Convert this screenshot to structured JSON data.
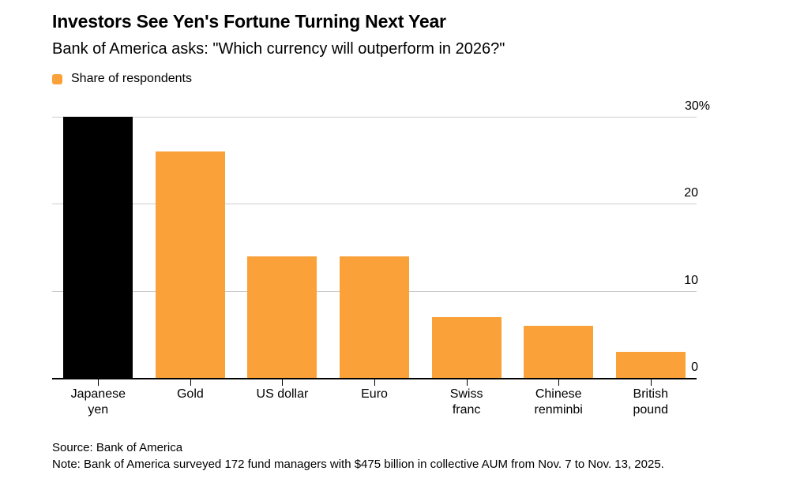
{
  "header": {
    "title": "Investors See Yen's Fortune Turning Next Year",
    "subtitle": "Bank of America asks: \"Which currency will outperform in 2026?\""
  },
  "legend": {
    "label": "Share of respondents"
  },
  "chart_data": {
    "type": "bar",
    "title": "Investors See Yen's Fortune Turning Next Year",
    "subtitle": "Bank of America asks: \"Which currency will outperform in 2026?\"",
    "series_name": "Share of respondents",
    "categories": [
      "Japanese yen",
      "Gold",
      "US dollar",
      "Euro",
      "Swiss franc",
      "Chinese renminbi",
      "British pound"
    ],
    "category_lines": [
      [
        "Japanese",
        "yen"
      ],
      [
        "Gold"
      ],
      [
        "US dollar"
      ],
      [
        "Euro"
      ],
      [
        "Swiss",
        "franc"
      ],
      [
        "Chinese",
        "renminbi"
      ],
      [
        "British",
        "pound"
      ]
    ],
    "values": [
      30,
      26,
      14,
      14,
      7,
      6,
      3
    ],
    "bar_colors": [
      "#000000",
      "#FAA239",
      "#FAA239",
      "#FAA239",
      "#FAA239",
      "#FAA239",
      "#FAA239"
    ],
    "xlabel": "",
    "ylabel": "",
    "ylim": [
      0,
      30
    ],
    "yticks": [
      0,
      10,
      20,
      30
    ],
    "ytick_labels": [
      "0",
      "10",
      "20",
      "30%"
    ],
    "grid": true,
    "legend_position": "top-left",
    "highlight_category": "Japanese yen"
  },
  "footer": {
    "source": "Source: Bank of America",
    "note": "Note: Bank of America surveyed 172 fund managers with $475 billion in collective AUM from Nov. 7 to Nov. 13, 2025."
  },
  "colors": {
    "accent_orange": "#FAA239",
    "highlight_black": "#000000",
    "gridline": "#CCCCCC",
    "axis": "#000000",
    "background": "#FFFFFF"
  }
}
